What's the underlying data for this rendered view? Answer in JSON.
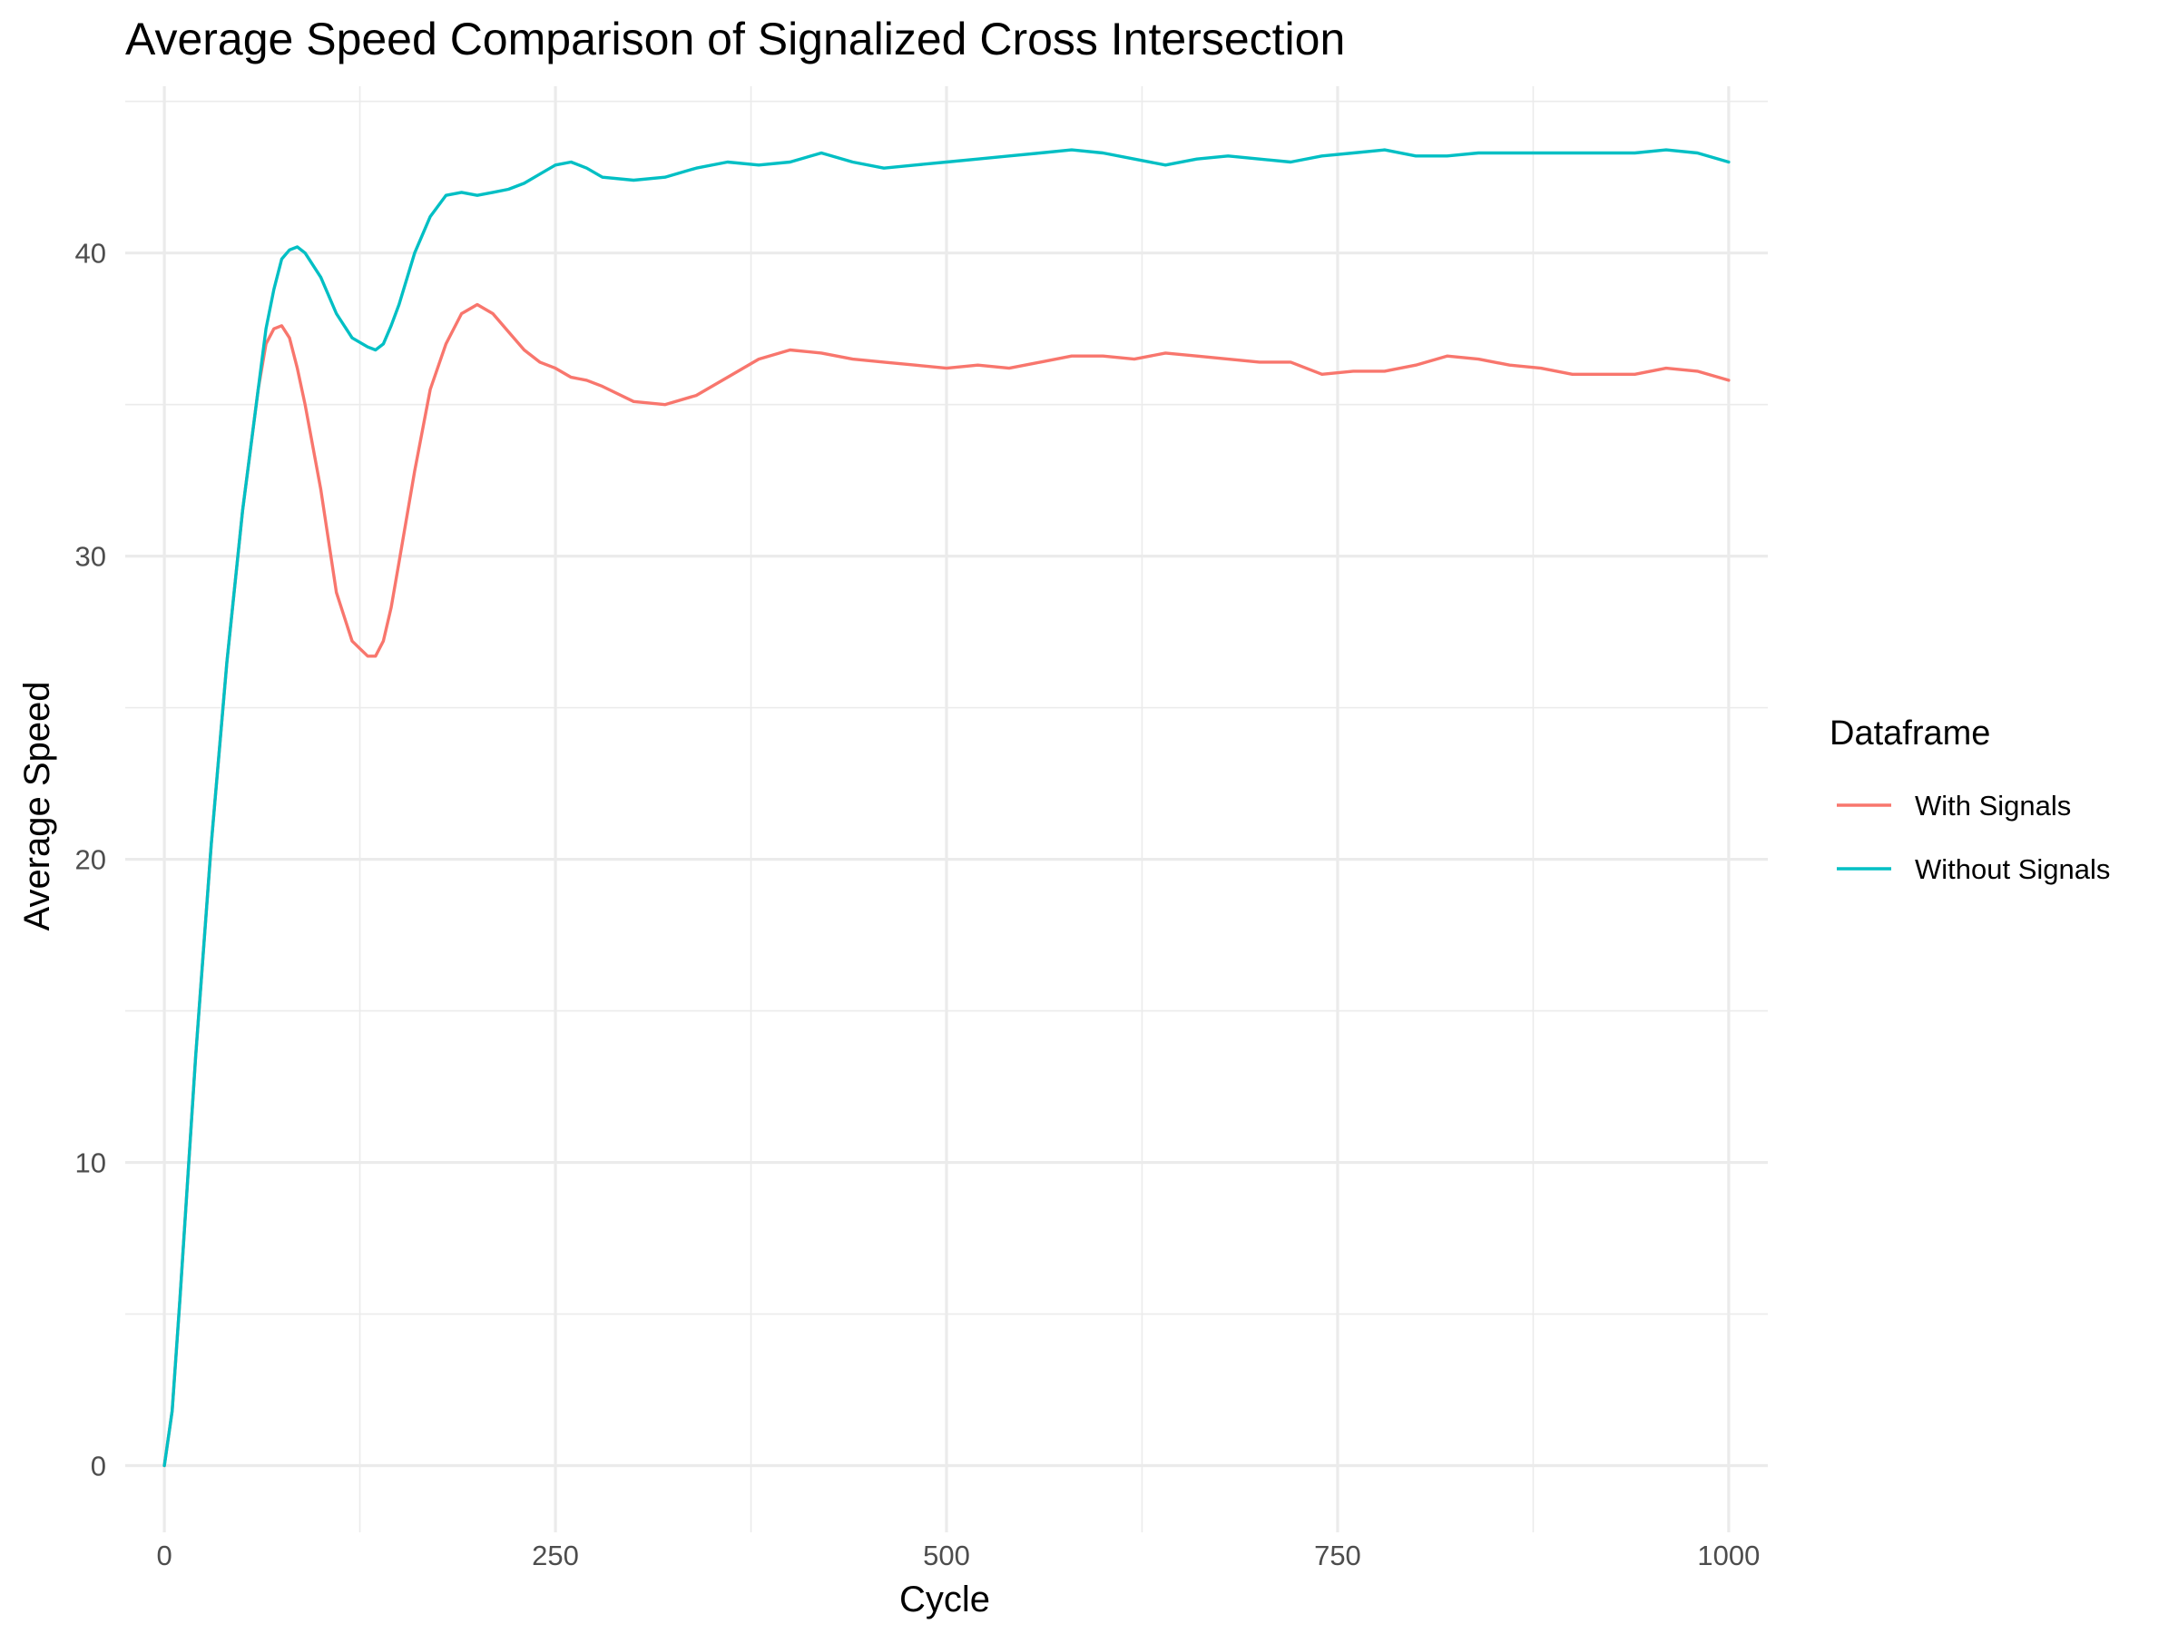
{
  "chart_data": {
    "type": "line",
    "title": "Average Speed Comparison of Signalized Cross Intersection",
    "xlabel": "Cycle",
    "ylabel": "Average Speed",
    "xlim": [
      -25,
      1025
    ],
    "ylim": [
      -2.2,
      45.5
    ],
    "x_ticks": [
      0,
      250,
      500,
      750,
      1000
    ],
    "y_ticks": [
      0,
      10,
      20,
      30,
      40
    ],
    "x_tick_labels": [
      "0",
      "250",
      "500",
      "750",
      "1000"
    ],
    "y_tick_labels": [
      "0",
      "10",
      "20",
      "30",
      "40"
    ],
    "grid": true,
    "legend": {
      "title": "Dataframe",
      "position": "right"
    },
    "series": [
      {
        "name": "With Signals",
        "color": "#F8766D",
        "x": [
          0,
          5,
          10,
          20,
          30,
          40,
          50,
          60,
          65,
          70,
          75,
          80,
          85,
          90,
          100,
          110,
          120,
          130,
          135,
          140,
          145,
          150,
          160,
          170,
          180,
          190,
          200,
          210,
          220,
          230,
          240,
          250,
          260,
          270,
          280,
          300,
          320,
          340,
          360,
          380,
          400,
          420,
          440,
          460,
          480,
          500,
          520,
          540,
          560,
          580,
          600,
          620,
          640,
          660,
          680,
          700,
          720,
          740,
          760,
          780,
          800,
          820,
          840,
          860,
          880,
          900,
          920,
          940,
          960,
          980,
          1000
        ],
        "y": [
          0,
          1.8,
          5.5,
          13.5,
          20.5,
          26.5,
          31.5,
          35.5,
          37.0,
          37.5,
          37.6,
          37.2,
          36.2,
          35.0,
          32.2,
          28.8,
          27.2,
          26.7,
          26.7,
          27.2,
          28.3,
          29.8,
          32.8,
          35.5,
          37.0,
          38.0,
          38.3,
          38.0,
          37.4,
          36.8,
          36.4,
          36.2,
          35.9,
          35.8,
          35.6,
          35.1,
          35.0,
          35.3,
          35.9,
          36.5,
          36.8,
          36.7,
          36.5,
          36.4,
          36.3,
          36.2,
          36.3,
          36.2,
          36.4,
          36.6,
          36.6,
          36.5,
          36.7,
          36.6,
          36.5,
          36.4,
          36.4,
          36.0,
          36.1,
          36.1,
          36.3,
          36.6,
          36.5,
          36.3,
          36.2,
          36.0,
          36.0,
          36.0,
          36.2,
          36.1,
          35.8
        ]
      },
      {
        "name": "Without Signals",
        "color": "#00BFC4",
        "x": [
          0,
          5,
          10,
          20,
          30,
          40,
          50,
          60,
          65,
          70,
          75,
          80,
          85,
          90,
          100,
          110,
          120,
          130,
          135,
          140,
          145,
          150,
          160,
          170,
          180,
          190,
          200,
          210,
          220,
          230,
          240,
          250,
          260,
          270,
          280,
          300,
          320,
          340,
          360,
          380,
          400,
          420,
          440,
          460,
          480,
          500,
          520,
          540,
          560,
          580,
          600,
          620,
          640,
          660,
          680,
          700,
          720,
          740,
          760,
          780,
          800,
          820,
          840,
          860,
          880,
          900,
          920,
          940,
          960,
          980,
          1000
        ],
        "y": [
          0,
          1.8,
          5.5,
          13.5,
          20.5,
          26.5,
          31.5,
          35.5,
          37.5,
          38.8,
          39.8,
          40.1,
          40.2,
          40.0,
          39.2,
          38.0,
          37.2,
          36.9,
          36.8,
          37.0,
          37.6,
          38.3,
          40.0,
          41.2,
          41.9,
          42.0,
          41.9,
          42.0,
          42.1,
          42.3,
          42.6,
          42.9,
          43.0,
          42.8,
          42.5,
          42.4,
          42.5,
          42.8,
          43.0,
          42.9,
          43.0,
          43.3,
          43.0,
          42.8,
          42.9,
          43.0,
          43.1,
          43.2,
          43.3,
          43.4,
          43.3,
          43.1,
          42.9,
          43.1,
          43.2,
          43.1,
          43.0,
          43.2,
          43.3,
          43.4,
          43.2,
          43.2,
          43.3,
          43.3,
          43.3,
          43.3,
          43.3,
          43.3,
          43.4,
          43.3,
          43.0
        ]
      }
    ]
  }
}
